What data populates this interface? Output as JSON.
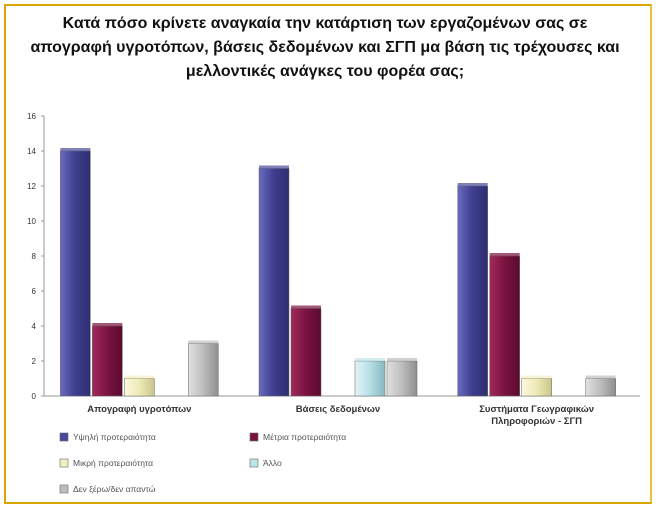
{
  "chart_data": {
    "type": "bar",
    "title": "Κατά πόσο κρίνετε αναγκαία την κατάρτιση των εργαζομένων σας σε απογραφή υγροτόπων, βάσεις δεδομένων και ΣΓΠ μα βάση τις τρέχουσες και μελλοντικές ανάγκες του φορέα σας;",
    "categories": [
      "Απογραφή υγροτόπων",
      "Βάσεις δεδομένων",
      "Συστήματα Γεωγραφικών Πληροφοριών - ΣΓΠ"
    ],
    "series": [
      {
        "name": "Υψηλή προτεραιότητα",
        "values": [
          14,
          13,
          12
        ],
        "color": "#4a4a9a"
      },
      {
        "name": "Μέτρια προτεραιότητα",
        "values": [
          4,
          5,
          8
        ],
        "color": "#7a1340"
      },
      {
        "name": "Μικρή προτεραιότητα",
        "values": [
          1,
          0,
          1
        ],
        "color": "#f2efc2"
      },
      {
        "name": "Άλλο",
        "values": [
          0,
          2,
          0
        ],
        "color": "#bfe4e8"
      },
      {
        "name": "Δεν ξέρω/δεν απαντώ",
        "values": [
          3,
          2,
          1
        ],
        "color": "#bdbdbd"
      }
    ],
    "ylim": [
      0,
      16
    ],
    "yticks": [
      0,
      2,
      4,
      6,
      8,
      10,
      12,
      14,
      16
    ],
    "grid": false,
    "legend_position": "bottom-left"
  }
}
